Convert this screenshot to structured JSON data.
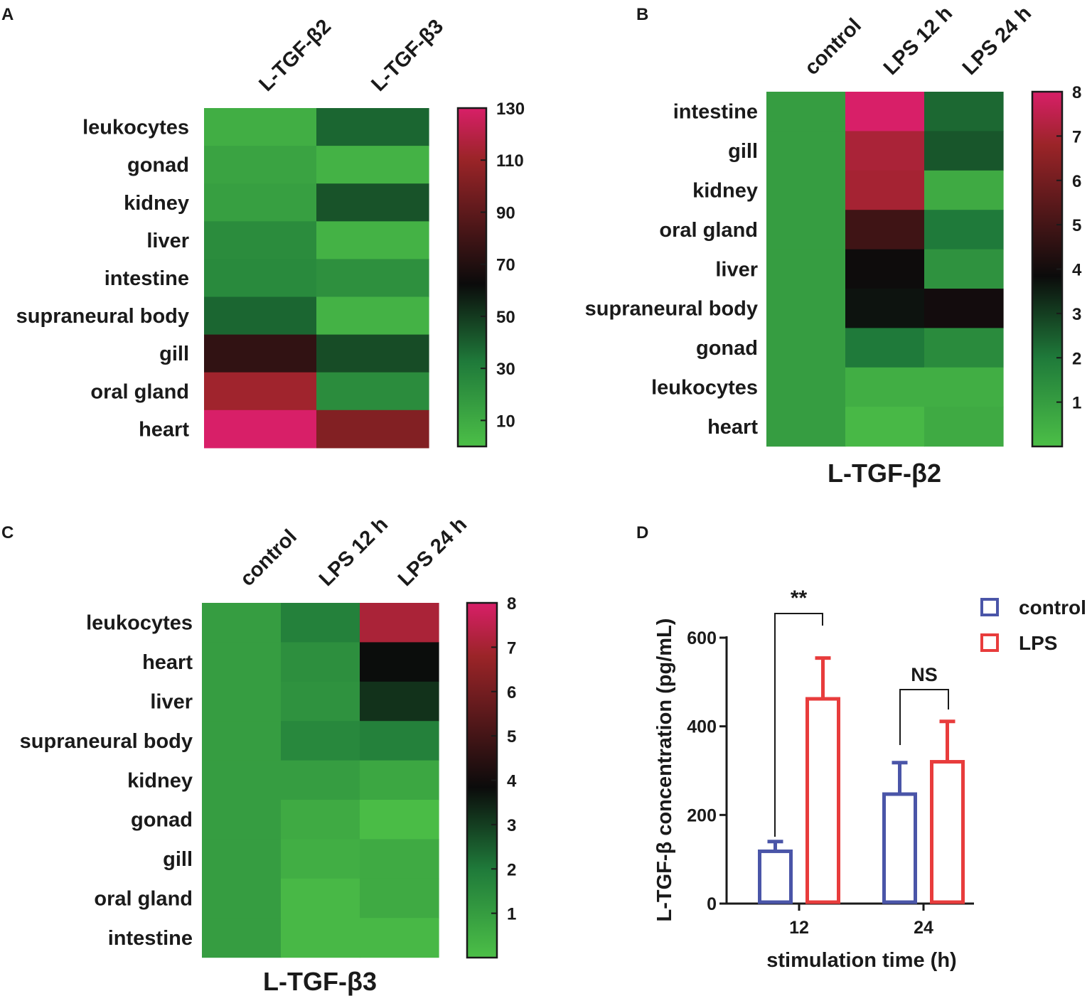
{
  "colors": {
    "heat_low": "#4cbf47",
    "heat_mid_green": "#1f7a3a",
    "heat_dark": "#0b0b0b",
    "heat_red": "#9b2428",
    "heat_high": "#d81f68",
    "control": "#4a55a8",
    "lps": "#e83c3c",
    "axis": "#1a1a1a"
  },
  "chart_data": [
    {
      "panel": "A",
      "type": "heatmap",
      "title": "",
      "columns": [
        "L-TGF-β2",
        "L-TGF-β3"
      ],
      "rows": [
        "leukocytes",
        "gonad",
        "kidney",
        "liver",
        "intestine",
        "supraneural body",
        "gill",
        "oral gland",
        "heart"
      ],
      "values": [
        [
          8,
          38
        ],
        [
          13,
          6
        ],
        [
          15,
          43
        ],
        [
          24,
          6
        ],
        [
          25,
          22
        ],
        [
          38,
          6
        ],
        [
          75,
          45
        ],
        [
          112,
          24
        ],
        [
          135,
          102
        ]
      ],
      "colorbar": {
        "min": 0,
        "max": 130,
        "ticks": [
          10,
          30,
          50,
          70,
          90,
          110,
          130
        ]
      }
    },
    {
      "panel": "B",
      "type": "heatmap",
      "title": "L-TGF-β2",
      "columns": [
        "control",
        "LPS 12 h",
        "LPS 24 h"
      ],
      "rows": [
        "intestine",
        "gill",
        "kidney",
        "oral gland",
        "liver",
        "supraneural body",
        "gonad",
        "leukocytes",
        "heart"
      ],
      "values": [
        [
          1,
          8.6,
          2.3
        ],
        [
          1,
          7.1,
          2.6
        ],
        [
          1,
          7.0,
          0.6
        ],
        [
          1,
          4.9,
          2.0
        ],
        [
          1,
          3.9,
          1.3
        ],
        [
          1,
          3.7,
          4.0
        ],
        [
          1,
          2.0,
          1.5
        ],
        [
          1,
          0.5,
          0.5
        ],
        [
          1,
          0.2,
          0.6
        ]
      ],
      "colorbar": {
        "min": 0,
        "max": 8,
        "ticks": [
          1,
          2,
          3,
          4,
          5,
          6,
          7,
          8
        ]
      }
    },
    {
      "panel": "C",
      "type": "heatmap",
      "title": "L-TGF-β3",
      "columns": [
        "control",
        "LPS 12 h",
        "LPS 24 h"
      ],
      "rows": [
        "leukocytes",
        "heart",
        "liver",
        "supraneural body",
        "kidney",
        "gonad",
        "gill",
        "oral gland",
        "intestine"
      ],
      "values": [
        [
          1,
          1.8,
          7.1
        ],
        [
          1,
          1.4,
          3.8
        ],
        [
          1,
          1.3,
          3.2
        ],
        [
          1,
          1.6,
          1.8
        ],
        [
          1,
          1.0,
          0.7
        ],
        [
          1,
          0.6,
          0.1
        ],
        [
          1,
          0.5,
          0.6
        ],
        [
          1,
          0.2,
          0.6
        ],
        [
          1,
          0.2,
          0.2
        ]
      ],
      "colorbar": {
        "min": 0,
        "max": 8,
        "ticks": [
          1,
          2,
          3,
          4,
          5,
          6,
          7,
          8
        ]
      }
    },
    {
      "panel": "D",
      "type": "bar",
      "title": "",
      "categories": [
        "12",
        "24"
      ],
      "xlabel": "stimulation time (h)",
      "ylabel": "L-TGF-β concentration (pg/mL)",
      "ylim": [
        0,
        600
      ],
      "yticks": [
        0,
        200,
        400,
        600
      ],
      "series": [
        {
          "name": "control",
          "values": [
            118,
            247
          ],
          "errors": [
            22,
            71
          ]
        },
        {
          "name": "LPS",
          "values": [
            462,
            320
          ],
          "errors": [
            92,
            91
          ]
        }
      ],
      "significance": [
        "**",
        "NS"
      ],
      "legend": "top-right"
    }
  ]
}
